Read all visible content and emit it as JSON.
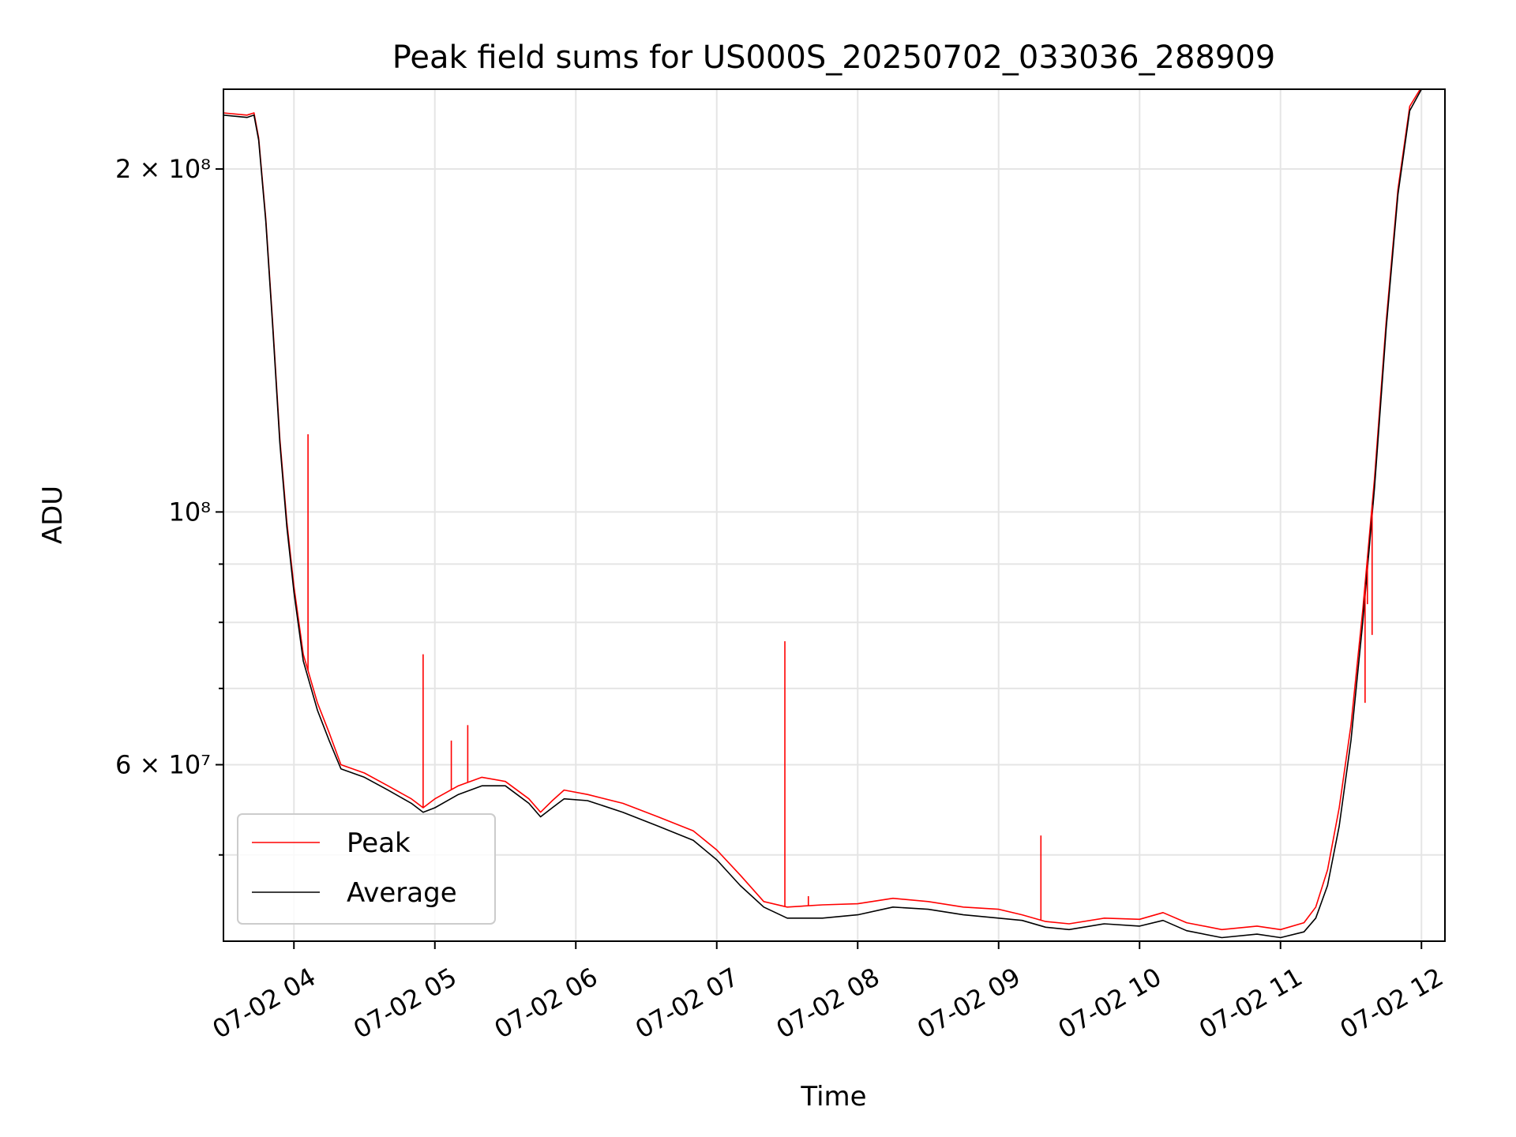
{
  "chart_data": {
    "type": "line",
    "title": "Peak field sums for US000S_20250702_033036_288909",
    "xlabel": "Time",
    "ylabel": "ADU",
    "y_scale": "log",
    "grid": true,
    "legend_position": "lower-left",
    "xlim": [
      "2025-07-02 03:30",
      "2025-07-02 12:10"
    ],
    "ylim": [
      42000000,
      235000000
    ],
    "x_ticks": [
      {
        "t": "2025-07-02 04:00",
        "label": "07-02 04"
      },
      {
        "t": "2025-07-02 05:00",
        "label": "07-02 05"
      },
      {
        "t": "2025-07-02 06:00",
        "label": "07-02 06"
      },
      {
        "t": "2025-07-02 07:00",
        "label": "07-02 07"
      },
      {
        "t": "2025-07-02 08:00",
        "label": "07-02 08"
      },
      {
        "t": "2025-07-02 09:00",
        "label": "07-02 09"
      },
      {
        "t": "2025-07-02 10:00",
        "label": "07-02 10"
      },
      {
        "t": "2025-07-02 11:00",
        "label": "07-02 11"
      },
      {
        "t": "2025-07-02 12:00",
        "label": "07-02 12"
      }
    ],
    "y_major_ticks": [
      {
        "v": 200000000,
        "label": "2 × 10⁸"
      },
      {
        "v": 100000000,
        "label": "10⁸"
      },
      {
        "v": 60000000,
        "label": "6 × 10⁷"
      }
    ],
    "y_minor_ticks": [
      50000000,
      70000000,
      80000000,
      90000000
    ],
    "series": [
      {
        "name": "Average",
        "color": "#000000",
        "points": [
          [
            "2025-07-02 03:30",
            223000000
          ],
          [
            "2025-07-02 03:40",
            222000000
          ],
          [
            "2025-07-02 03:43",
            223000000
          ],
          [
            "2025-07-02 03:45",
            212000000
          ],
          [
            "2025-07-02 03:48",
            180000000
          ],
          [
            "2025-07-02 03:51",
            145000000
          ],
          [
            "2025-07-02 03:54",
            115000000
          ],
          [
            "2025-07-02 03:57",
            97000000
          ],
          [
            "2025-07-02 04:00",
            85000000
          ],
          [
            "2025-07-02 04:04",
            74000000
          ],
          [
            "2025-07-02 04:10",
            67000000
          ],
          [
            "2025-07-02 04:15",
            63000000
          ],
          [
            "2025-07-02 04:20",
            59500000
          ],
          [
            "2025-07-02 04:30",
            58500000
          ],
          [
            "2025-07-02 04:40",
            57000000
          ],
          [
            "2025-07-02 04:50",
            55500000
          ],
          [
            "2025-07-02 04:55",
            54500000
          ],
          [
            "2025-07-02 05:00",
            55000000
          ],
          [
            "2025-07-02 05:10",
            56500000
          ],
          [
            "2025-07-02 05:20",
            57500000
          ],
          [
            "2025-07-02 05:30",
            57500000
          ],
          [
            "2025-07-02 05:40",
            55500000
          ],
          [
            "2025-07-02 05:45",
            54000000
          ],
          [
            "2025-07-02 05:50",
            55000000
          ],
          [
            "2025-07-02 05:55",
            56000000
          ],
          [
            "2025-07-02 06:05",
            55800000
          ],
          [
            "2025-07-02 06:20",
            54500000
          ],
          [
            "2025-07-02 06:35",
            53000000
          ],
          [
            "2025-07-02 06:50",
            51500000
          ],
          [
            "2025-07-02 07:00",
            49500000
          ],
          [
            "2025-07-02 07:10",
            47000000
          ],
          [
            "2025-07-02 07:20",
            45000000
          ],
          [
            "2025-07-02 07:30",
            44000000
          ],
          [
            "2025-07-02 07:45",
            44000000
          ],
          [
            "2025-07-02 08:00",
            44300000
          ],
          [
            "2025-07-02 08:15",
            45000000
          ],
          [
            "2025-07-02 08:30",
            44800000
          ],
          [
            "2025-07-02 08:45",
            44300000
          ],
          [
            "2025-07-02 09:00",
            44000000
          ],
          [
            "2025-07-02 09:10",
            43800000
          ],
          [
            "2025-07-02 09:20",
            43200000
          ],
          [
            "2025-07-02 09:30",
            43000000
          ],
          [
            "2025-07-02 09:45",
            43500000
          ],
          [
            "2025-07-02 10:00",
            43300000
          ],
          [
            "2025-07-02 10:10",
            43800000
          ],
          [
            "2025-07-02 10:20",
            42900000
          ],
          [
            "2025-07-02 10:35",
            42300000
          ],
          [
            "2025-07-02 10:50",
            42600000
          ],
          [
            "2025-07-02 11:00",
            42300000
          ],
          [
            "2025-07-02 11:10",
            42800000
          ],
          [
            "2025-07-02 11:15",
            44000000
          ],
          [
            "2025-07-02 11:20",
            47000000
          ],
          [
            "2025-07-02 11:25",
            53000000
          ],
          [
            "2025-07-02 11:30",
            63000000
          ],
          [
            "2025-07-02 11:35",
            80000000
          ],
          [
            "2025-07-02 11:40",
            105000000
          ],
          [
            "2025-07-02 11:45",
            145000000
          ],
          [
            "2025-07-02 11:50",
            190000000
          ],
          [
            "2025-07-02 11:55",
            225000000
          ],
          [
            "2025-07-02 12:00",
            235000000
          ]
        ]
      },
      {
        "name": "Peak",
        "color": "#ff0000",
        "points": [
          [
            "2025-07-02 03:30",
            224000000
          ],
          [
            "2025-07-02 03:40",
            223000000
          ],
          [
            "2025-07-02 03:43",
            224000000
          ],
          [
            "2025-07-02 03:45",
            213000000
          ],
          [
            "2025-07-02 03:48",
            181000000
          ],
          [
            "2025-07-02 03:51",
            146000000
          ],
          [
            "2025-07-02 03:54",
            116000000
          ],
          [
            "2025-07-02 03:57",
            98000000
          ],
          [
            "2025-07-02 04:00",
            86000000
          ],
          [
            "2025-07-02 04:04",
            75000000
          ],
          [
            "2025-07-02 04:10",
            68000000
          ],
          [
            "2025-07-02 04:15",
            64000000
          ],
          [
            "2025-07-02 04:20",
            60000000
          ],
          [
            "2025-07-02 04:30",
            59000000
          ],
          [
            "2025-07-02 04:40",
            57500000
          ],
          [
            "2025-07-02 04:50",
            56000000
          ],
          [
            "2025-07-02 04:55",
            55000000
          ],
          [
            "2025-07-02 05:00",
            56000000
          ],
          [
            "2025-07-02 05:10",
            57500000
          ],
          [
            "2025-07-02 05:20",
            58500000
          ],
          [
            "2025-07-02 05:30",
            58000000
          ],
          [
            "2025-07-02 05:40",
            56000000
          ],
          [
            "2025-07-02 05:45",
            54500000
          ],
          [
            "2025-07-02 05:50",
            55800000
          ],
          [
            "2025-07-02 05:55",
            57000000
          ],
          [
            "2025-07-02 06:05",
            56500000
          ],
          [
            "2025-07-02 06:20",
            55500000
          ],
          [
            "2025-07-02 06:35",
            54000000
          ],
          [
            "2025-07-02 06:50",
            52500000
          ],
          [
            "2025-07-02 07:00",
            50500000
          ],
          [
            "2025-07-02 07:10",
            48000000
          ],
          [
            "2025-07-02 07:20",
            45500000
          ],
          [
            "2025-07-02 07:30",
            45000000
          ],
          [
            "2025-07-02 07:45",
            45200000
          ],
          [
            "2025-07-02 08:00",
            45300000
          ],
          [
            "2025-07-02 08:15",
            45800000
          ],
          [
            "2025-07-02 08:30",
            45500000
          ],
          [
            "2025-07-02 08:45",
            45000000
          ],
          [
            "2025-07-02 09:00",
            44800000
          ],
          [
            "2025-07-02 09:10",
            44300000
          ],
          [
            "2025-07-02 09:20",
            43700000
          ],
          [
            "2025-07-02 09:30",
            43500000
          ],
          [
            "2025-07-02 09:45",
            44000000
          ],
          [
            "2025-07-02 10:00",
            43900000
          ],
          [
            "2025-07-02 10:10",
            44500000
          ],
          [
            "2025-07-02 10:20",
            43600000
          ],
          [
            "2025-07-02 10:35",
            43000000
          ],
          [
            "2025-07-02 10:50",
            43300000
          ],
          [
            "2025-07-02 11:00",
            43000000
          ],
          [
            "2025-07-02 11:10",
            43600000
          ],
          [
            "2025-07-02 11:15",
            45000000
          ],
          [
            "2025-07-02 11:20",
            48500000
          ],
          [
            "2025-07-02 11:25",
            55000000
          ],
          [
            "2025-07-02 11:30",
            65000000
          ],
          [
            "2025-07-02 11:35",
            82000000
          ],
          [
            "2025-07-02 11:40",
            107000000
          ],
          [
            "2025-07-02 11:45",
            147000000
          ],
          [
            "2025-07-02 11:50",
            192000000
          ],
          [
            "2025-07-02 11:55",
            227000000
          ],
          [
            "2025-07-02 12:00",
            236000000
          ]
        ],
        "spikes": [
          [
            "2025-07-02 04:06",
            117000000
          ],
          [
            "2025-07-02 04:55",
            75000000
          ],
          [
            "2025-07-02 05:07",
            63000000
          ],
          [
            "2025-07-02 05:14",
            65000000
          ],
          [
            "2025-07-02 07:29",
            77000000
          ],
          [
            "2025-07-02 07:39",
            46000000
          ],
          [
            "2025-07-02 09:18",
            52000000
          ],
          [
            "2025-07-02 11:36",
            68000000
          ],
          [
            "2025-07-02 11:37",
            83000000
          ],
          [
            "2025-07-02 11:39",
            78000000
          ]
        ]
      }
    ]
  }
}
